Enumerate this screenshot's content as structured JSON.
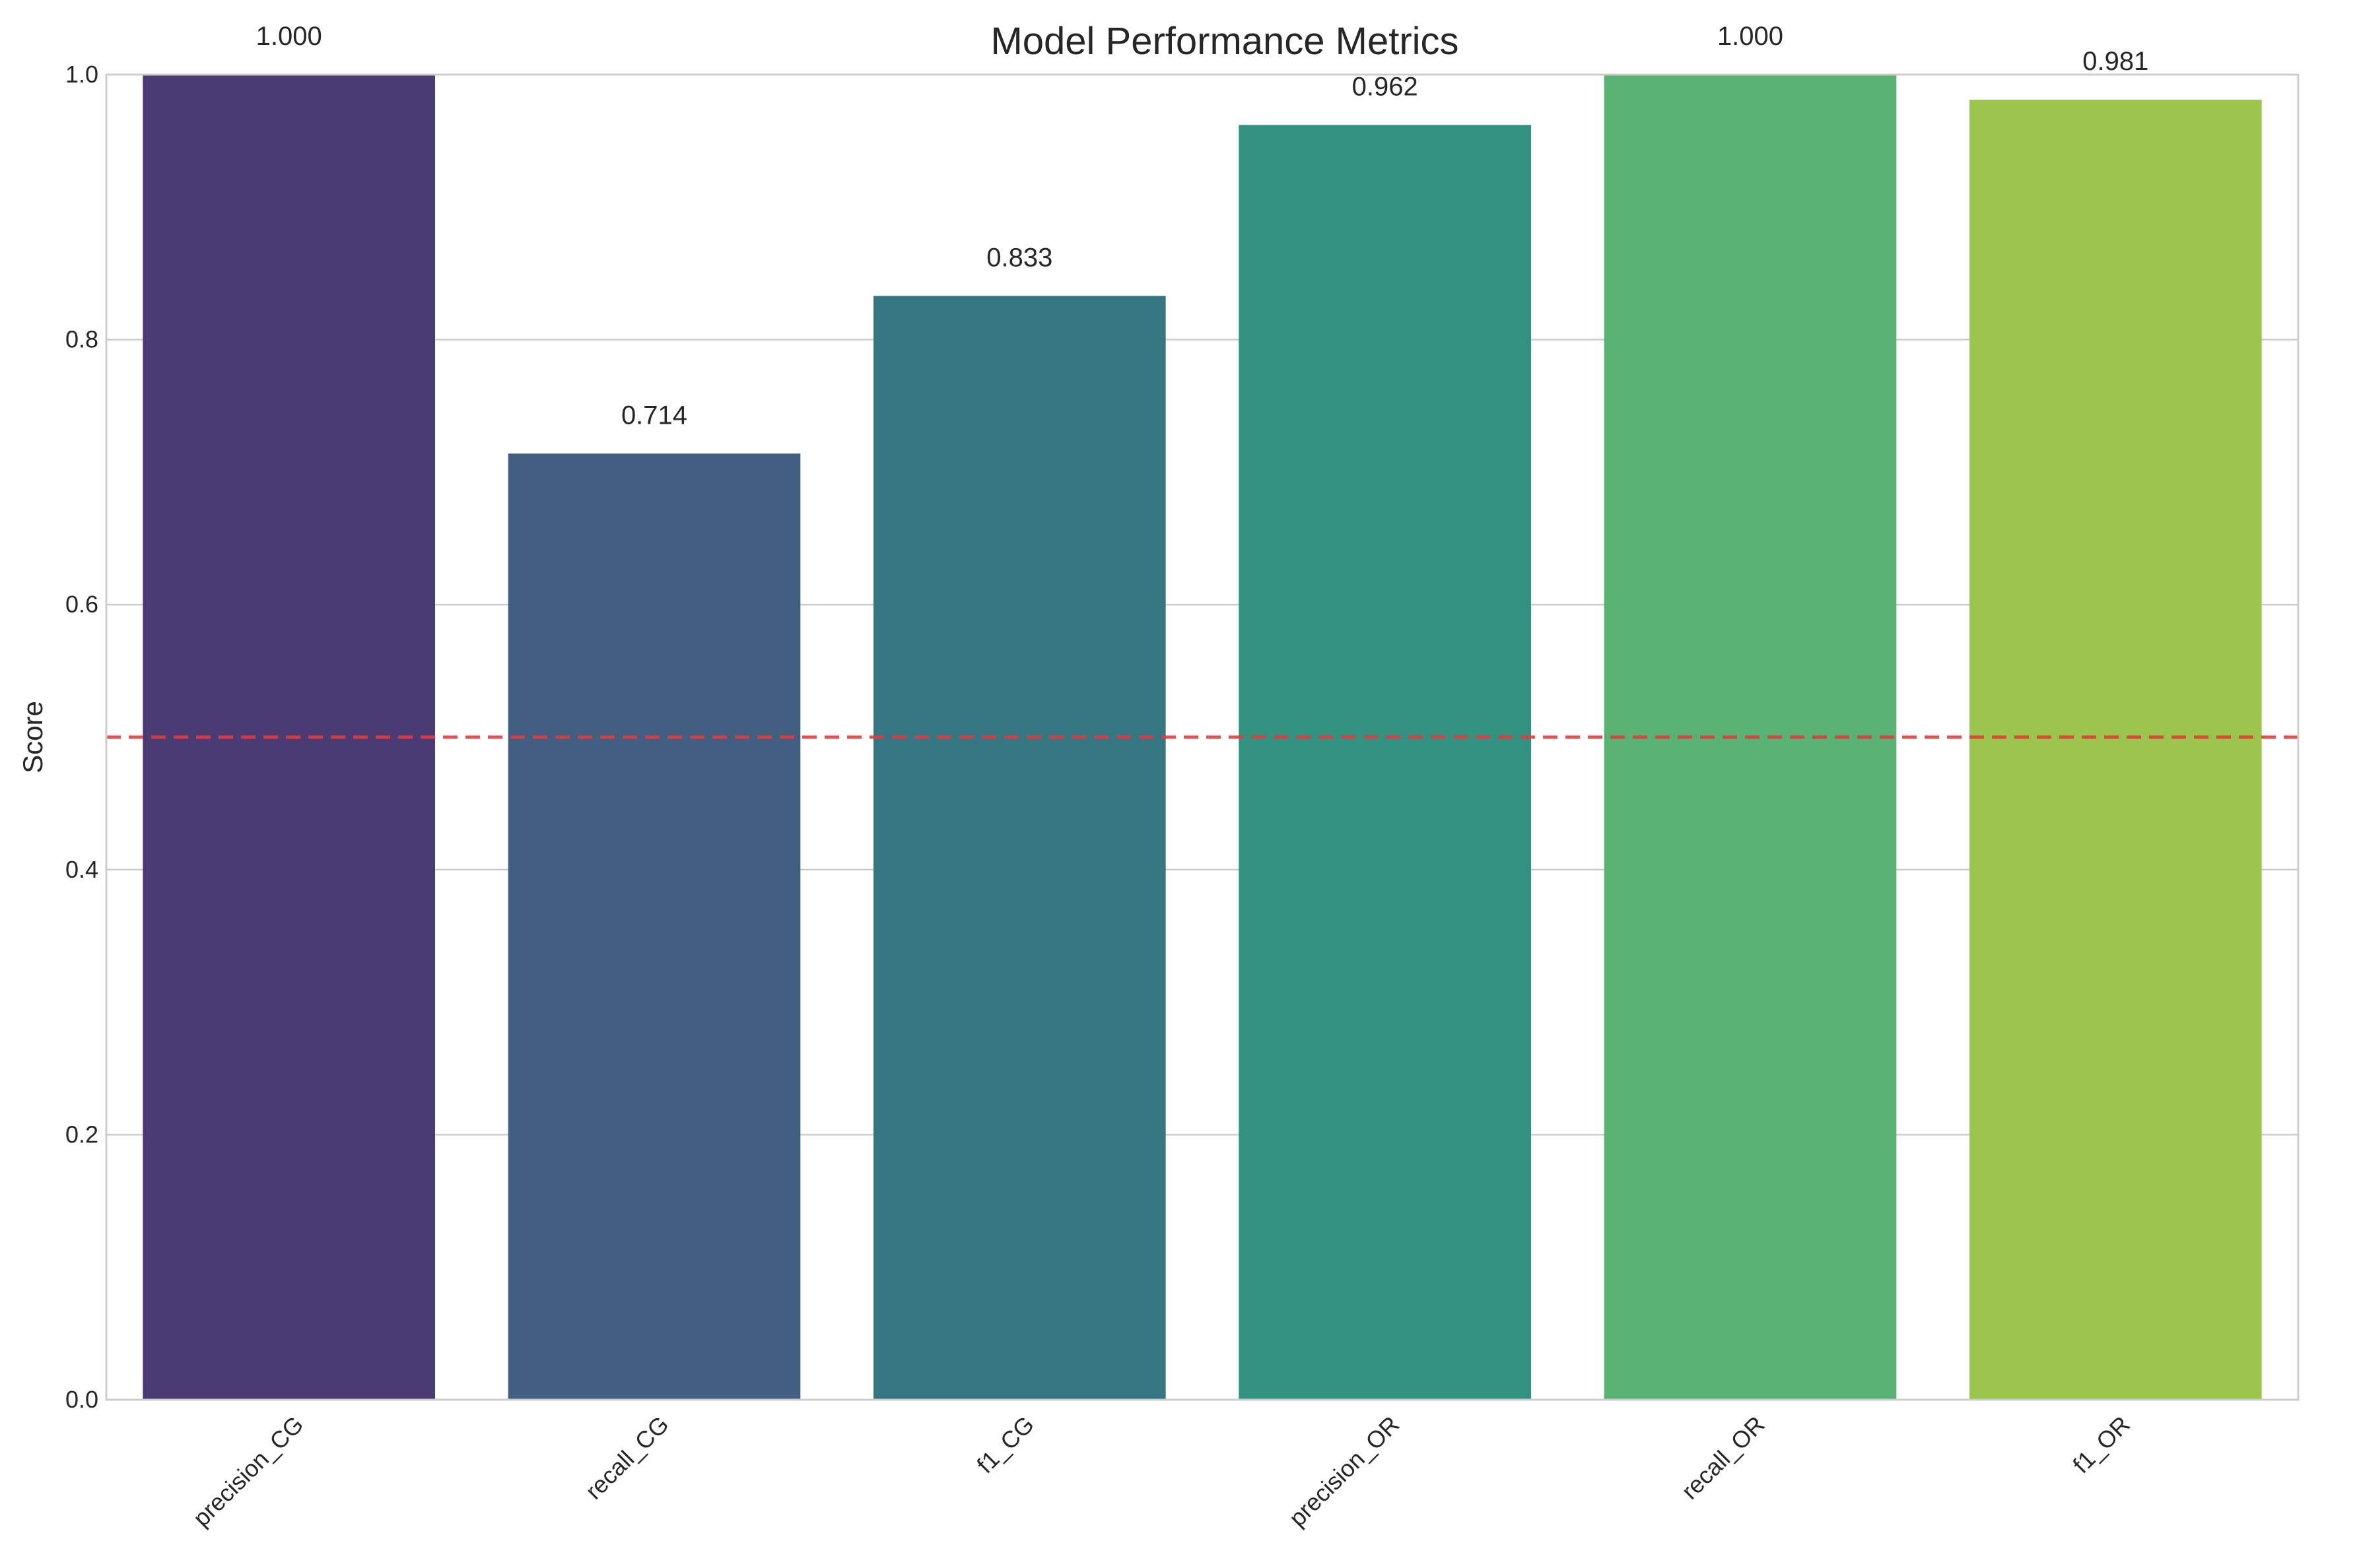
{
  "chart_data": {
    "type": "bar",
    "title": "Model Performance Metrics",
    "xlabel": "",
    "ylabel": "Score",
    "categories": [
      "precision_CG",
      "recall_CG",
      "f1_CG",
      "precision_OR",
      "recall_OR",
      "f1_OR"
    ],
    "values": [
      1.0,
      0.714,
      0.833,
      0.962,
      1.0,
      0.981
    ],
    "value_labels": [
      "1.000",
      "0.714",
      "0.833",
      "0.962",
      "1.000",
      "0.981"
    ],
    "colors": [
      "#4b3b74",
      "#425f81",
      "#367682",
      "#32917f",
      "#5ab174",
      "#9ac44c"
    ],
    "ylim": [
      0,
      1.0
    ],
    "yticks": [
      0.0,
      0.2,
      0.4,
      0.6,
      0.8,
      1.0
    ],
    "ytick_labels": [
      "0.0",
      "0.2",
      "0.4",
      "0.6",
      "0.8",
      "1.0"
    ],
    "grid": "horizontal",
    "reference_line": {
      "y": 0.5,
      "color": "#e23c3c",
      "style": "dashed"
    },
    "xtick_rotation_deg": 45
  }
}
